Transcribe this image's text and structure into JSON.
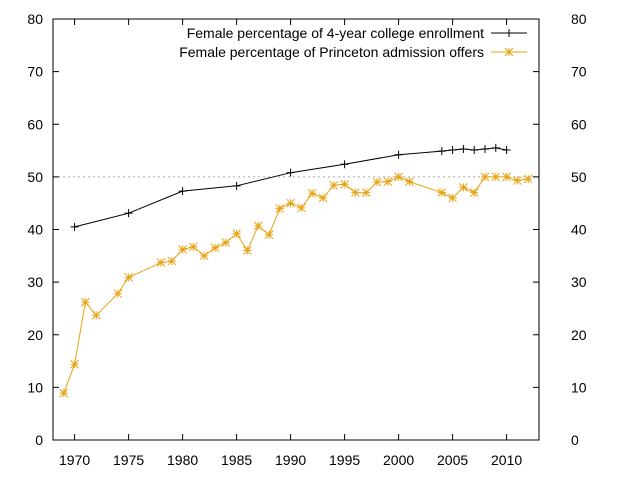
{
  "chart_data": {
    "type": "line",
    "title": "",
    "xlabel": "",
    "ylabel": "",
    "xlim": [
      1968,
      2013
    ],
    "ylim": [
      0,
      80
    ],
    "x_ticks": [
      1970,
      1975,
      1980,
      1985,
      1990,
      1995,
      2000,
      2005,
      2010
    ],
    "y_ticks": [
      0,
      10,
      20,
      30,
      40,
      50,
      60,
      70,
      80
    ],
    "right_axis_mirrors_left": true,
    "reference_line": {
      "y": 50,
      "style": "dotted",
      "color": "#aaaaaa"
    },
    "grid": false,
    "legend_position": "top-right",
    "series": [
      {
        "name": "Female percentage of 4-year college enrollment",
        "color": "#000000",
        "marker": "plus",
        "x": [
          1970,
          1975,
          1980,
          1985,
          1990,
          1995,
          2000,
          2004,
          2005,
          2006,
          2007,
          2008,
          2009,
          2010
        ],
        "y": [
          40.5,
          43.1,
          47.3,
          48.3,
          50.8,
          52.4,
          54.2,
          54.9,
          55.1,
          55.3,
          55.1,
          55.3,
          55.5,
          55.1
        ]
      },
      {
        "name": "Female percentage of Princeton admission offers",
        "color": "#e8a20f",
        "marker": "star",
        "x": [
          1969,
          1970,
          1971,
          1972,
          1974,
          1975,
          1978,
          1979,
          1980,
          1981,
          1982,
          1983,
          1984,
          1985,
          1986,
          1987,
          1988,
          1989,
          1990,
          1991,
          1992,
          1993,
          1994,
          1995,
          1996,
          1997,
          1998,
          1999,
          2000,
          2001,
          2004,
          2005,
          2006,
          2007,
          2008,
          2009,
          2010,
          2011,
          2012
        ],
        "y": [
          8.9,
          14.4,
          26.2,
          23.7,
          27.8,
          30.9,
          33.7,
          34.0,
          36.2,
          36.7,
          35.0,
          36.5,
          37.5,
          39.2,
          36.0,
          40.7,
          39.0,
          44.0,
          45.0,
          44.1,
          46.9,
          46.0,
          48.4,
          48.6,
          47.0,
          47.0,
          49.0,
          49.1,
          50.0,
          49.1,
          47.0,
          46.0,
          48.0,
          47.0,
          50.0,
          50.0,
          50.0,
          49.3,
          49.6
        ]
      }
    ]
  }
}
